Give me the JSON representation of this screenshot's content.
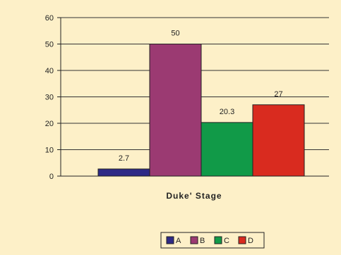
{
  "chart_data": {
    "type": "bar",
    "xlabel": "Duke' Stage",
    "ylabel": "",
    "ylim": [
      0,
      60
    ],
    "yticks": [
      0,
      10,
      20,
      30,
      40,
      50,
      60
    ],
    "grid": true,
    "legend_position": "bottom",
    "series": [
      {
        "name": "A",
        "value": 2.7,
        "label": "2.7",
        "color": "#2e2a86"
      },
      {
        "name": "B",
        "value": 50,
        "label": "50",
        "color": "#9b3a72"
      },
      {
        "name": "C",
        "value": 20.3,
        "label": "20.3",
        "color": "#119a48"
      },
      {
        "name": "D",
        "value": 27,
        "label": "27",
        "color": "#d92b1f"
      }
    ],
    "colors": {
      "background": "#fdf0c8",
      "plot_background": "#fdf0c8",
      "axis": "#222222",
      "grid": "#333333"
    }
  }
}
